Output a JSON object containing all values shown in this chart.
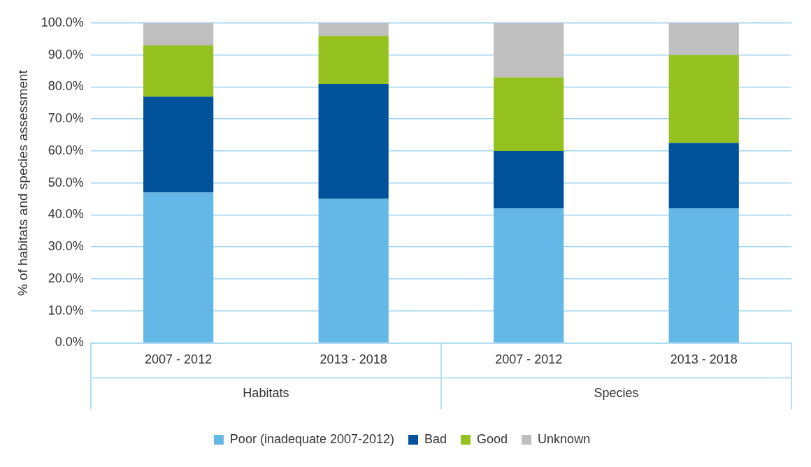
{
  "chart_data": {
    "type": "bar",
    "stacked": true,
    "categories": [
      "2007 - 2012",
      "2013 - 2018",
      "2007 - 2012",
      "2013 - 2018"
    ],
    "series": [
      {
        "name": "Poor (inadequate 2007-2012)",
        "color": "#63b8e8",
        "values": [
          47,
          45,
          42,
          42
        ]
      },
      {
        "name": "Bad",
        "color": "#00539b",
        "values": [
          30,
          36,
          18,
          20.5
        ]
      },
      {
        "name": "Good",
        "color": "#95c11f",
        "values": [
          16,
          15,
          23,
          27.5
        ]
      },
      {
        "name": "Unknown",
        "color": "#bfbfbf",
        "values": [
          7,
          4,
          17,
          10
        ]
      }
    ],
    "ylabel": "% of habitats and species assessment",
    "ylim": [
      0,
      100
    ],
    "yticks": [
      {
        "value": 0,
        "label": "0.0%"
      },
      {
        "value": 10,
        "label": "10.0%"
      },
      {
        "value": 20,
        "label": "20.0%"
      },
      {
        "value": 30,
        "label": "30.0%"
      },
      {
        "value": 40,
        "label": "40.0%"
      },
      {
        "value": 50,
        "label": "50.0%"
      },
      {
        "value": 60,
        "label": "60.0%"
      },
      {
        "value": 70,
        "label": "70.0%"
      },
      {
        "value": 80,
        "label": "80.0%"
      },
      {
        "value": 90,
        "label": "90.0%"
      },
      {
        "value": 100,
        "label": "100.0%"
      }
    ],
    "annotations": [
      "Habitats",
      "Species"
    ],
    "grid": "y",
    "legend": "bottom"
  }
}
